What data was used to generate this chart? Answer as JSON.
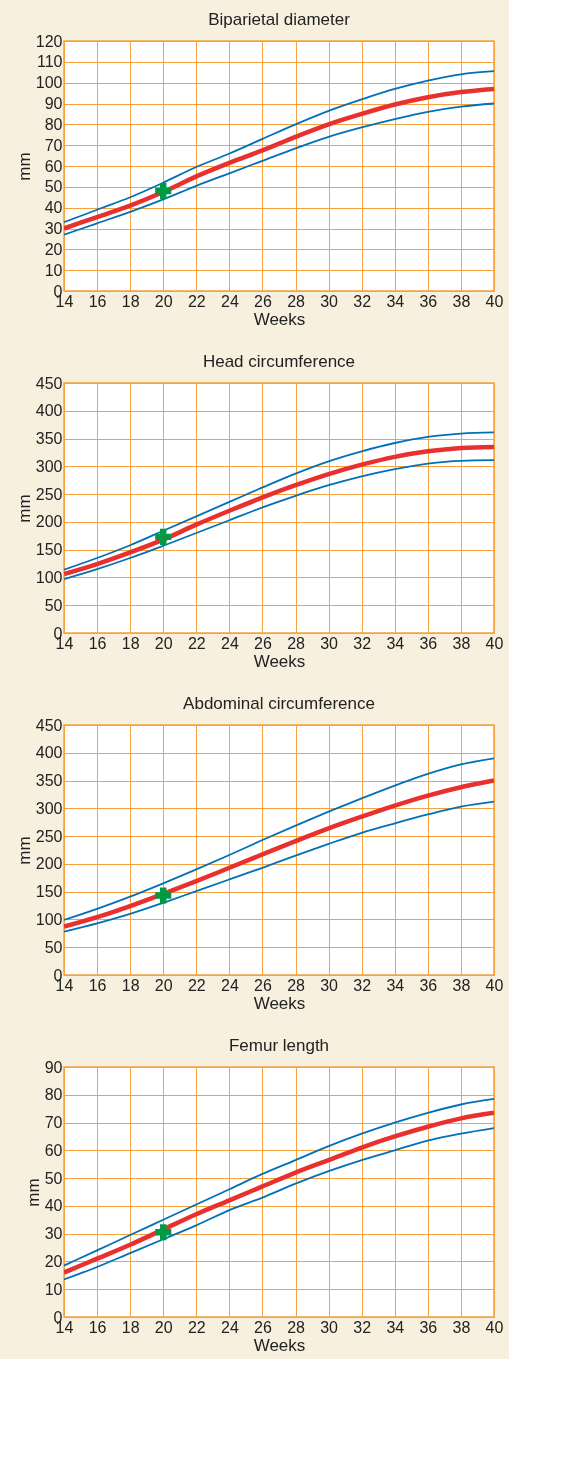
{
  "chart_data": [
    {
      "type": "line",
      "title": "Biparietal diameter",
      "xlabel": "Weeks",
      "ylabel": "mm",
      "x": [
        14,
        16,
        18,
        20,
        22,
        24,
        26,
        28,
        30,
        32,
        34,
        36,
        38,
        40
      ],
      "xlim": [
        14,
        40
      ],
      "xticks": [
        14,
        16,
        18,
        20,
        22,
        24,
        26,
        28,
        30,
        32,
        34,
        36,
        38,
        40
      ],
      "ylim": [
        0,
        120
      ],
      "yticks": [
        0,
        10,
        20,
        30,
        40,
        50,
        60,
        70,
        80,
        90,
        100,
        110,
        120
      ],
      "grid": true,
      "line_style": "solid",
      "marker": "none",
      "series": [
        {
          "color": "#0070b8",
          "values": [
            33,
            39,
            45,
            52,
            59.5,
            66,
            73,
            80,
            86.5,
            92,
            97,
            101,
            104,
            105.5
          ]
        },
        {
          "color": "#e8312f",
          "values": [
            30,
            35.5,
            41,
            47.5,
            55,
            61.5,
            67.5,
            74,
            80,
            85,
            89.5,
            93,
            95.5,
            97
          ]
        },
        {
          "color": "#0070b8",
          "values": [
            27,
            32.5,
            38,
            44,
            50.5,
            56.5,
            62.5,
            68.5,
            74,
            78.5,
            82.5,
            86,
            88.5,
            90
          ]
        },
        {
          "type": "scatter",
          "marker": "cross",
          "color": "#009a44",
          "values": [
            null,
            null,
            null,
            48,
            null,
            null,
            null,
            null,
            null,
            null,
            null,
            null,
            null,
            null
          ]
        }
      ]
    },
    {
      "type": "line",
      "title": "Head circumference",
      "xlabel": "Weeks",
      "ylabel": "mm",
      "x": [
        14,
        16,
        18,
        20,
        22,
        24,
        26,
        28,
        30,
        32,
        34,
        36,
        38,
        40
      ],
      "xlim": [
        14,
        40
      ],
      "xticks": [
        14,
        16,
        18,
        20,
        22,
        24,
        26,
        28,
        30,
        32,
        34,
        36,
        38,
        40
      ],
      "ylim": [
        0,
        450
      ],
      "yticks": [
        0,
        50,
        100,
        150,
        200,
        250,
        300,
        350,
        400,
        450
      ],
      "grid": true,
      "line_style": "solid",
      "marker": "none",
      "series": [
        {
          "color": "#0070b8",
          "values": [
            114,
            135,
            158,
            184,
            210,
            236,
            262,
            287,
            309,
            327,
            342,
            353,
            359,
            361
          ]
        },
        {
          "color": "#e8312f",
          "values": [
            106,
            124,
            145,
            168,
            195,
            220,
            244,
            266,
            286,
            303,
            317,
            327,
            333,
            335
          ]
        },
        {
          "color": "#0070b8",
          "values": [
            97,
            115,
            135,
            157,
            180,
            203,
            226,
            247,
            266,
            282,
            295,
            305,
            310,
            311
          ]
        },
        {
          "type": "scatter",
          "marker": "cross",
          "color": "#009a44",
          "values": [
            null,
            null,
            null,
            173,
            null,
            null,
            null,
            null,
            null,
            null,
            null,
            null,
            null,
            null
          ]
        }
      ]
    },
    {
      "type": "line",
      "title": "Abdominal circumference",
      "xlabel": "Weeks",
      "ylabel": "mm",
      "x": [
        14,
        16,
        18,
        20,
        22,
        24,
        26,
        28,
        30,
        32,
        34,
        36,
        38,
        40
      ],
      "xlim": [
        14,
        40
      ],
      "xticks": [
        14,
        16,
        18,
        20,
        22,
        24,
        26,
        28,
        30,
        32,
        34,
        36,
        38,
        40
      ],
      "ylim": [
        0,
        450
      ],
      "yticks": [
        0,
        50,
        100,
        150,
        200,
        250,
        300,
        350,
        400,
        450
      ],
      "grid": true,
      "line_style": "solid",
      "marker": "none",
      "series": [
        {
          "color": "#0070b8",
          "values": [
            99,
            119,
            141,
            165,
            190,
            216,
            243,
            269,
            294,
            318,
            341,
            362,
            379,
            390
          ]
        },
        {
          "color": "#e8312f",
          "values": [
            87,
            104,
            124,
            146,
            169,
            193,
            217,
            241,
            264,
            285,
            305,
            323,
            338,
            350
          ]
        },
        {
          "color": "#0070b8",
          "values": [
            78,
            93,
            110,
            130,
            151,
            172,
            193,
            215,
            236,
            256,
            273,
            289,
            303,
            312
          ]
        },
        {
          "type": "scatter",
          "marker": "cross",
          "color": "#009a44",
          "values": [
            null,
            null,
            null,
            143,
            null,
            null,
            null,
            null,
            null,
            null,
            null,
            null,
            null,
            null
          ]
        }
      ]
    },
    {
      "type": "line",
      "title": "Femur length",
      "xlabel": "Weeks",
      "ylabel": "mm",
      "x": [
        14,
        16,
        18,
        20,
        22,
        24,
        26,
        28,
        30,
        32,
        34,
        36,
        38,
        40
      ],
      "xlim": [
        14,
        40
      ],
      "xticks": [
        14,
        16,
        18,
        20,
        22,
        24,
        26,
        28,
        30,
        32,
        34,
        36,
        38,
        40
      ],
      "ylim": [
        0,
        90
      ],
      "yticks": [
        0,
        10,
        20,
        30,
        40,
        50,
        60,
        70,
        80,
        90
      ],
      "grid": true,
      "line_style": "solid",
      "marker": "none",
      "series": [
        {
          "color": "#0070b8",
          "values": [
            18.5,
            24,
            29.5,
            35,
            40.5,
            46,
            51.5,
            56.5,
            61.5,
            66,
            70,
            73.5,
            76.5,
            78.5
          ]
        },
        {
          "color": "#e8312f",
          "values": [
            16,
            21,
            26,
            31.5,
            37,
            42,
            47,
            52,
            56.5,
            61,
            65,
            68.5,
            71.5,
            73.5
          ]
        },
        {
          "color": "#0070b8",
          "values": [
            13.5,
            18,
            23,
            28,
            33,
            38.5,
            43,
            48,
            52.5,
            56.5,
            60,
            63.5,
            66,
            68
          ]
        },
        {
          "type": "scatter",
          "marker": "cross",
          "color": "#009a44",
          "values": [
            null,
            null,
            null,
            30.5,
            null,
            null,
            null,
            null,
            null,
            null,
            null,
            null,
            null,
            null
          ]
        }
      ]
    }
  ]
}
